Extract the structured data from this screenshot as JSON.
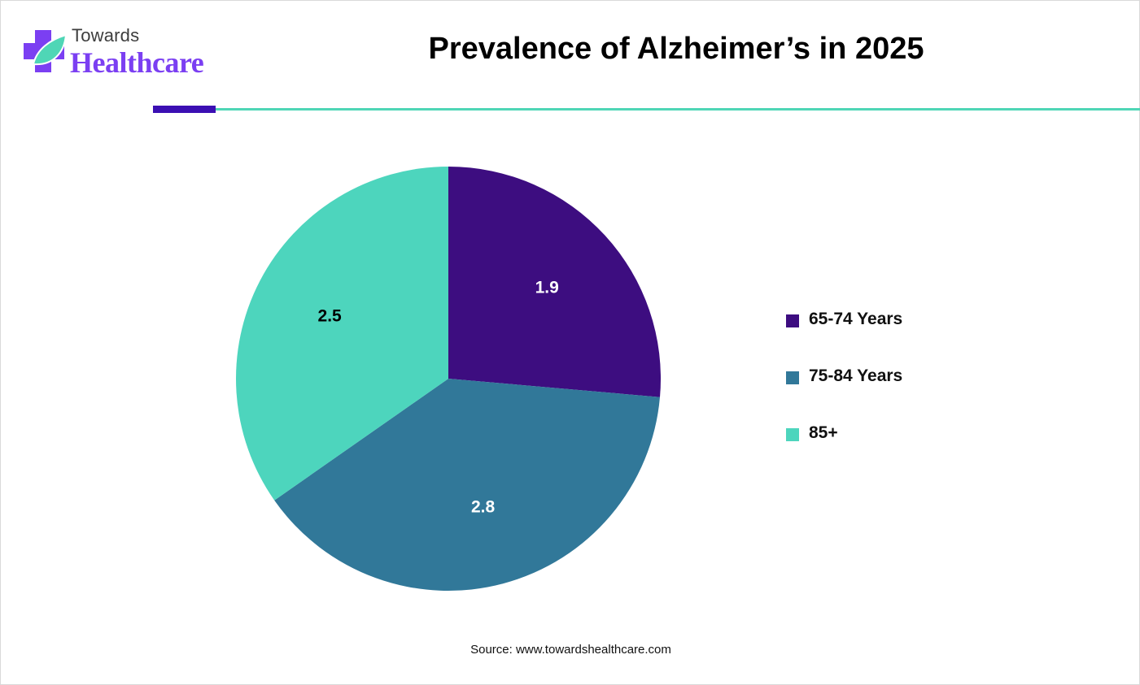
{
  "brand": {
    "top_text": "Towards",
    "main_text": "Healthcare",
    "icon": "medical-cross-leaf-icon",
    "colors": {
      "purple": "#7b3ff2",
      "teal": "#4fd6b6"
    }
  },
  "chart_data": {
    "type": "pie",
    "title": "Prevalence of Alzheimer’s in 2025",
    "categories": [
      "65-74 Years",
      "75-84 Years",
      "85+"
    ],
    "values": [
      1.9,
      2.8,
      2.5
    ],
    "data_labels": [
      "1.9",
      "2.8",
      "2.5"
    ],
    "colors": [
      "#3d0d80",
      "#317899",
      "#4dd5bd"
    ],
    "label_colors": [
      "#ffffff",
      "#ffffff",
      "#000000"
    ],
    "legend_position": "right"
  },
  "source": "Source: www.towardshealthcare.com"
}
